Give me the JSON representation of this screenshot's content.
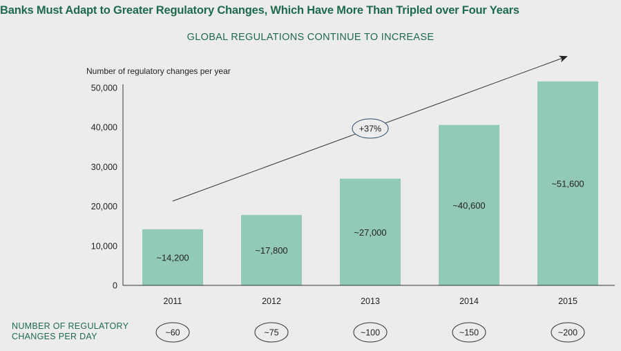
{
  "chart_data": {
    "type": "bar",
    "title": "Banks Must Adapt to Greater Regulatory Changes, Which Have More Than Tripled over Four Years",
    "subtitle": "GLOBAL REGULATIONS CONTINUE TO INCREASE",
    "ylabel": "Number of regulatory changes per year",
    "xlabel": "",
    "categories": [
      "2011",
      "2012",
      "2013",
      "2014",
      "2015"
    ],
    "values": [
      14200,
      17800,
      27000,
      40600,
      51600
    ],
    "value_labels": [
      "~14,200",
      "~17,800",
      "~27,000",
      "~40,600",
      "~51,600"
    ],
    "ylim": [
      0,
      52000
    ],
    "yticks": [
      0,
      10000,
      20000,
      30000,
      40000,
      50000
    ],
    "ytick_labels": [
      "0",
      "10,000",
      "20,000",
      "30,000",
      "40,000",
      "50,000"
    ],
    "grid": false,
    "bar_color": "#93c9b7",
    "growth_annotation": "+37%",
    "per_day": {
      "label_line1": "NUMBER OF REGULATORY",
      "label_line2": "CHANGES PER DAY",
      "values": [
        "~60",
        "~75",
        "~100",
        "~150",
        "~200"
      ]
    }
  }
}
